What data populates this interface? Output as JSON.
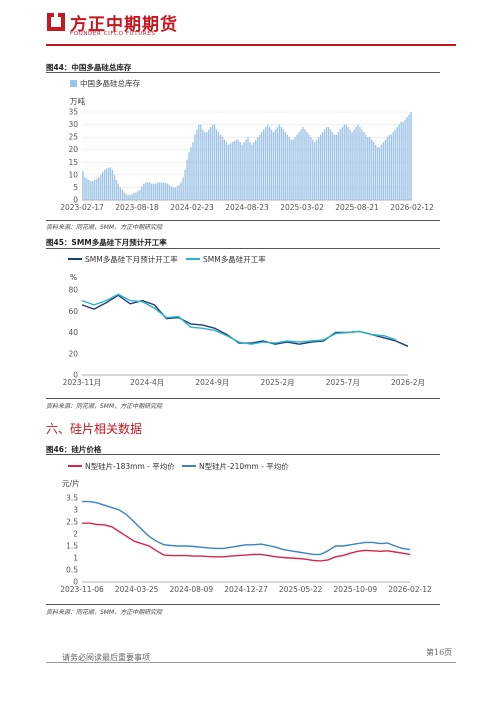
{
  "header": {
    "brand_cn": "方正中期期货",
    "brand_en": "FOUNDER CIFCO FUTURES",
    "brand_color": "#c8161d"
  },
  "figures": {
    "fig44": {
      "title": "图44：中国多晶硅总库存",
      "source": "资料来源：同花顺，SMM，方正中期研究院"
    },
    "fig45": {
      "title": "图45：SMM多晶硅下月预计开工率",
      "source": "资料来源：同花顺，SMM，方正中期研究院"
    },
    "fig46": {
      "title": "图46：硅片价格",
      "source": "资料来源：同花顺，SMM，方正中期研究院"
    }
  },
  "section": {
    "title": "六、硅片相关数据"
  },
  "footer": {
    "disclaimer": "请务必阅读最后重要事项",
    "page": "第16页"
  },
  "chart_data": [
    {
      "type": "bar",
      "unit": "万吨",
      "ylim": [
        0,
        35
      ],
      "yticks": [
        0,
        5,
        10,
        15,
        20,
        25,
        30,
        35
      ],
      "xticks": [
        "2023-02-17",
        "2023-08-18",
        "2024-02-23",
        "2024-08-23",
        "2025-03-02",
        "2025-08-21",
        "2026-02-12"
      ],
      "legend_position": "top-left",
      "series": [
        {
          "name": "中国多晶硅总库存",
          "color": "#9dc3e6",
          "values": [
            11.5,
            9,
            8.5,
            8,
            7.5,
            7.5,
            8,
            8.5,
            9,
            10,
            11,
            12,
            12.5,
            12.8,
            13,
            12,
            10,
            8,
            6.5,
            5,
            4,
            3,
            2.5,
            2,
            2,
            2.2,
            2.8,
            3,
            3.5,
            4,
            5.5,
            6.5,
            7,
            7,
            7,
            6.5,
            6.5,
            6.5,
            7,
            7,
            7,
            6.8,
            6.8,
            6.5,
            6,
            5.5,
            5,
            5,
            5.5,
            6,
            7,
            9,
            12,
            16,
            19,
            21,
            23,
            26,
            28,
            30,
            30,
            28,
            27,
            27,
            28,
            29,
            30,
            30,
            28,
            27,
            26,
            25,
            24,
            23,
            22,
            22.5,
            23,
            23.5,
            24,
            24,
            23,
            22,
            23,
            24,
            25,
            23,
            22,
            23,
            24,
            25,
            26,
            27,
            28,
            29,
            30,
            29,
            28,
            27,
            28,
            29,
            30,
            29,
            28,
            27,
            26,
            25,
            24,
            24,
            25,
            26,
            27,
            28,
            29,
            28,
            27,
            26,
            25,
            24,
            23,
            24,
            25,
            26,
            27,
            28,
            29,
            29,
            28,
            27,
            26,
            26,
            27,
            28,
            29,
            30,
            30,
            29,
            28,
            27,
            28,
            29,
            30,
            29,
            28,
            27,
            26,
            25,
            25,
            24,
            23,
            22,
            21,
            21,
            22,
            23,
            24,
            25,
            26,
            26,
            27,
            28,
            29,
            30,
            31,
            31,
            32,
            33,
            34,
            35
          ]
        }
      ]
    },
    {
      "type": "line",
      "unit": "%",
      "ylim": [
        0,
        80
      ],
      "yticks": [
        0,
        20,
        40,
        60,
        80
      ],
      "xticks": [
        "2023-11月",
        "2024-4月",
        "2024-9月",
        "2025-2月",
        "2025-7月",
        "2026-2月"
      ],
      "legend_position": "top",
      "x": [
        "2023-11",
        "2023-12",
        "2024-01",
        "2024-02",
        "2024-03",
        "2024-04",
        "2024-05",
        "2024-06",
        "2024-07",
        "2024-08",
        "2024-09",
        "2024-10",
        "2024-11",
        "2024-12",
        "2025-01",
        "2025-02",
        "2025-03",
        "2025-04",
        "2025-05",
        "2025-06",
        "2025-07",
        "2025-08",
        "2025-09",
        "2025-10",
        "2025-11",
        "2025-12",
        "2026-01",
        "2026-02"
      ],
      "series": [
        {
          "name": "SMM多晶硅下月预计开工率",
          "color": "#1f3d7a",
          "values": [
            66,
            62,
            68,
            75,
            67,
            70,
            66,
            53,
            54,
            48,
            47,
            44,
            38,
            30,
            30,
            32,
            29,
            31,
            29,
            31,
            32,
            40,
            40,
            41,
            38,
            35,
            32,
            27
          ]
        },
        {
          "name": "SMM多晶硅开工率",
          "color": "#2bb5c8",
          "values": [
            70,
            66,
            70,
            76,
            70,
            69,
            63,
            54,
            55,
            45,
            44,
            42,
            37,
            31,
            29,
            31,
            30,
            32,
            31,
            32,
            33,
            39,
            40,
            41,
            38,
            37,
            33,
            null
          ]
        }
      ]
    },
    {
      "type": "line",
      "unit": "元/片",
      "ylim": [
        0,
        3.5
      ],
      "yticks": [
        0,
        0.5,
        1,
        1.5,
        2,
        2.5,
        3,
        3.5
      ],
      "xticks": [
        "2023-11-06",
        "2024-03-25",
        "2024-08-09",
        "2024-12-27",
        "2025-05-22",
        "2025-10-09",
        "2026-02-12"
      ],
      "legend_position": "top",
      "series": [
        {
          "name": "N型硅片-183mm - 平均价",
          "color": "#d6254d",
          "values": [
            2.45,
            2.45,
            2.4,
            2.38,
            2.3,
            2.1,
            1.9,
            1.7,
            1.6,
            1.5,
            1.3,
            1.12,
            1.1,
            1.1,
            1.1,
            1.08,
            1.08,
            1.06,
            1.05,
            1.05,
            1.08,
            1.1,
            1.12,
            1.15,
            1.15,
            1.1,
            1.05,
            1.02,
            1.0,
            0.98,
            0.95,
            0.9,
            0.88,
            0.92,
            1.05,
            1.1,
            1.2,
            1.28,
            1.32,
            1.3,
            1.28,
            1.3,
            1.25,
            1.2,
            1.15
          ]
        },
        {
          "name": "N型硅片-210mm - 平均价",
          "color": "#3b83c6",
          "values": [
            3.35,
            3.35,
            3.3,
            3.2,
            3.1,
            3.0,
            2.8,
            2.5,
            2.2,
            1.9,
            1.7,
            1.55,
            1.52,
            1.5,
            1.5,
            1.48,
            1.45,
            1.42,
            1.4,
            1.4,
            1.45,
            1.5,
            1.55,
            1.55,
            1.58,
            1.52,
            1.45,
            1.35,
            1.3,
            1.25,
            1.2,
            1.15,
            1.15,
            1.3,
            1.5,
            1.5,
            1.55,
            1.6,
            1.65,
            1.65,
            1.6,
            1.62,
            1.5,
            1.4,
            1.35
          ]
        }
      ]
    }
  ]
}
